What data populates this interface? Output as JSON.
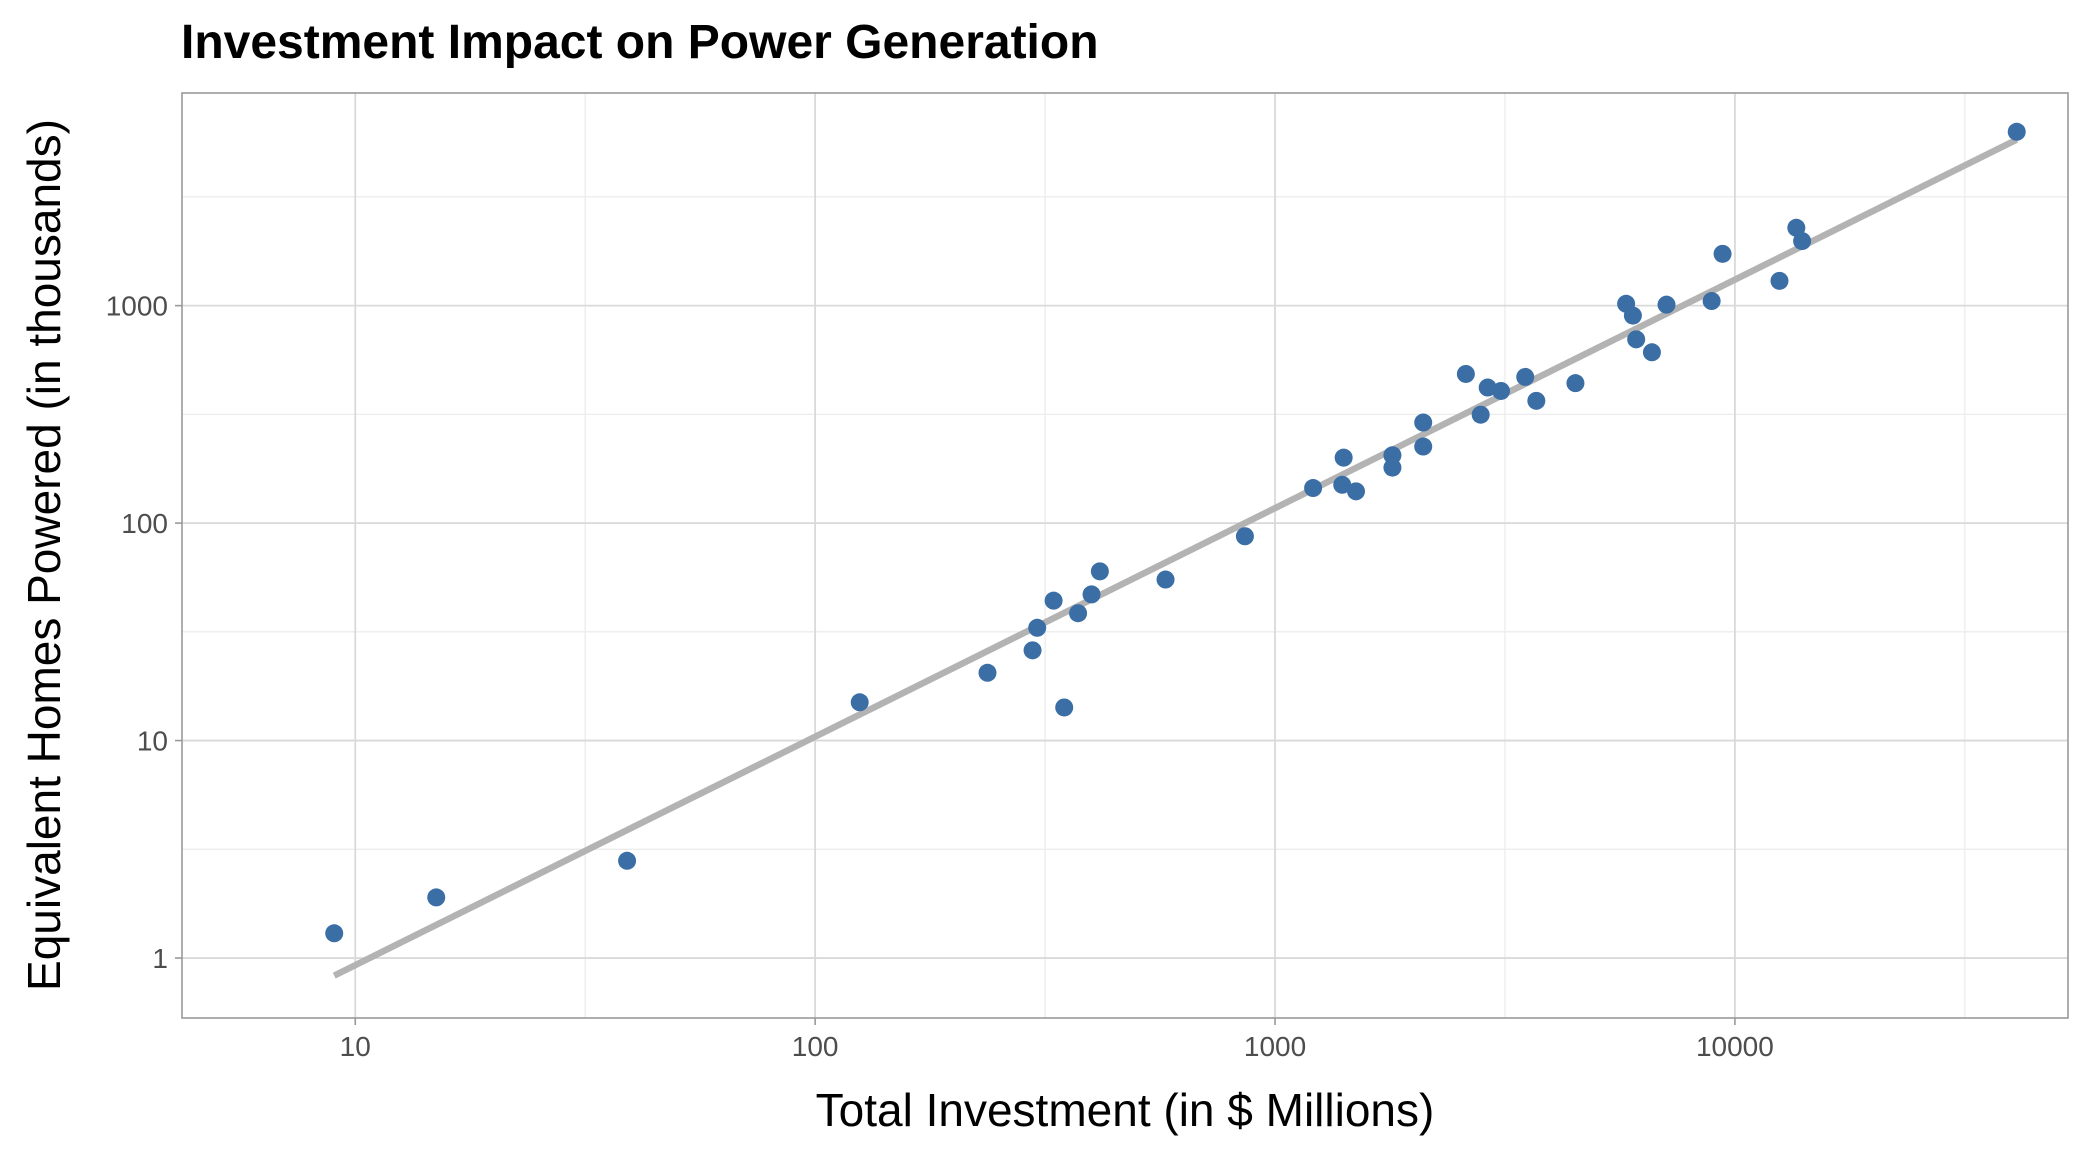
{
  "chart_data": {
    "type": "scatter",
    "title": "Investment Impact on Power Generation",
    "xlabel": "Total Investment (in $ Millions)",
    "ylabel": "Equivalent Homes Powered (in thousands)",
    "x_scale": "log10",
    "y_scale": "log10",
    "xlim": [
      4.2,
      53000
    ],
    "ylim": [
      0.53,
      9500
    ],
    "x_ticks": [
      {
        "value": 10,
        "label": "10"
      },
      {
        "value": 100,
        "label": "100"
      },
      {
        "value": 1000,
        "label": "1000"
      },
      {
        "value": 10000,
        "label": "10000"
      }
    ],
    "y_ticks": [
      {
        "value": 1,
        "label": "1"
      },
      {
        "value": 10,
        "label": "10"
      },
      {
        "value": 100,
        "label": "100"
      },
      {
        "value": 1000,
        "label": "1000"
      }
    ],
    "grid": true,
    "point_color": "#3a6ea5",
    "trend_color": "#b3b3b3",
    "trend_line": {
      "x": [
        9,
        41000
      ],
      "y": [
        0.83,
        5800
      ]
    },
    "points": [
      {
        "x": 9,
        "y": 1.3
      },
      {
        "x": 15,
        "y": 1.9
      },
      {
        "x": 39,
        "y": 2.8
      },
      {
        "x": 125,
        "y": 15
      },
      {
        "x": 237,
        "y": 20.5
      },
      {
        "x": 297,
        "y": 26
      },
      {
        "x": 304,
        "y": 33
      },
      {
        "x": 330,
        "y": 44
      },
      {
        "x": 348,
        "y": 14.2
      },
      {
        "x": 373,
        "y": 38.5
      },
      {
        "x": 399,
        "y": 47
      },
      {
        "x": 416,
        "y": 60
      },
      {
        "x": 578,
        "y": 55
      },
      {
        "x": 860,
        "y": 87
      },
      {
        "x": 1210,
        "y": 145
      },
      {
        "x": 1400,
        "y": 150
      },
      {
        "x": 1410,
        "y": 200
      },
      {
        "x": 1500,
        "y": 140
      },
      {
        "x": 1800,
        "y": 180
      },
      {
        "x": 1800,
        "y": 205
      },
      {
        "x": 2100,
        "y": 225
      },
      {
        "x": 2100,
        "y": 290
      },
      {
        "x": 2600,
        "y": 485
      },
      {
        "x": 2800,
        "y": 315
      },
      {
        "x": 2900,
        "y": 420
      },
      {
        "x": 3100,
        "y": 405
      },
      {
        "x": 3500,
        "y": 470
      },
      {
        "x": 3700,
        "y": 365
      },
      {
        "x": 4500,
        "y": 440
      },
      {
        "x": 5800,
        "y": 1020
      },
      {
        "x": 6000,
        "y": 900
      },
      {
        "x": 6100,
        "y": 700
      },
      {
        "x": 6600,
        "y": 610
      },
      {
        "x": 7100,
        "y": 1010
      },
      {
        "x": 8900,
        "y": 1050
      },
      {
        "x": 9400,
        "y": 1730
      },
      {
        "x": 12500,
        "y": 1300
      },
      {
        "x": 13600,
        "y": 2280
      },
      {
        "x": 14000,
        "y": 1980
      },
      {
        "x": 41000,
        "y": 6300
      }
    ]
  }
}
